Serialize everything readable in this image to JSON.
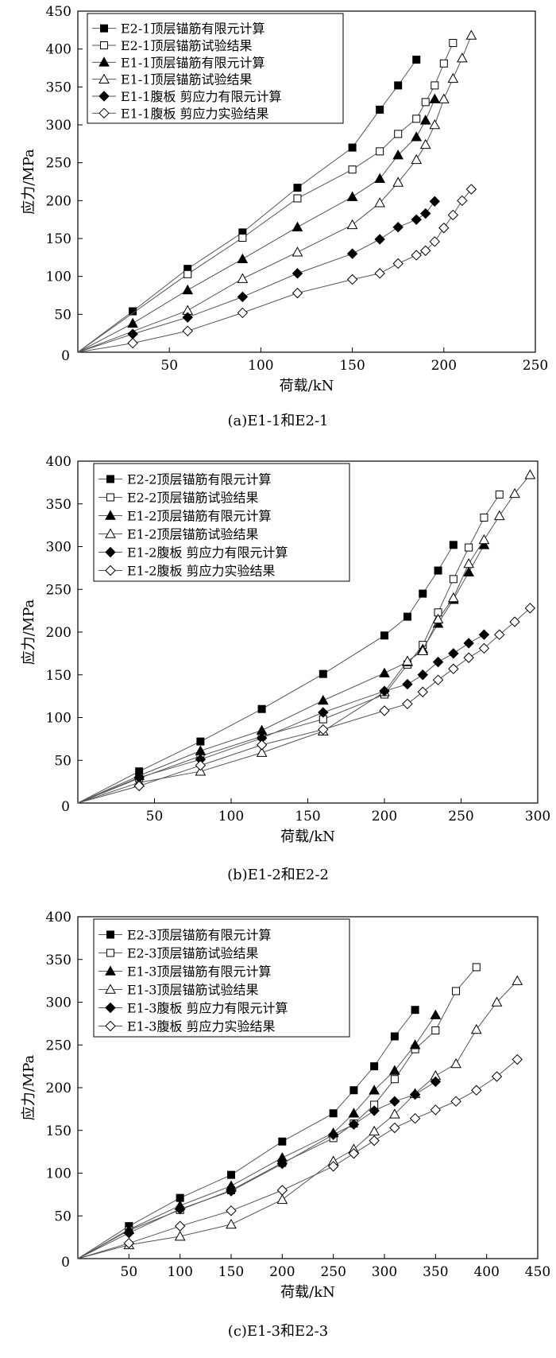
{
  "chart_data": [
    {
      "type": "line",
      "caption": "(a)E1-1和E2-1",
      "xlabel": "荷载/kN",
      "ylabel": "应力/MPa",
      "xlim": [
        0,
        250
      ],
      "ylim": [
        0,
        450
      ],
      "xticks": [
        "50",
        "100",
        "150",
        "200",
        "250"
      ],
      "yticks": [
        "50",
        "100",
        "150",
        "200",
        "250",
        "300",
        "350",
        "400",
        "450"
      ],
      "origin_label": "0",
      "legend_position": "top-left",
      "series": [
        {
          "name": "E2-1顶层锚筋有限元计算",
          "marker": "square-filled",
          "x": [
            0,
            30,
            60,
            90,
            120,
            150,
            165,
            175,
            185
          ],
          "y": [
            0,
            54,
            110,
            158,
            217,
            270,
            320,
            352,
            386
          ]
        },
        {
          "name": "E2-1顶层锚筋试验结果",
          "marker": "square-open",
          "x": [
            0,
            60,
            90,
            120,
            150,
            165,
            175,
            185,
            190,
            195,
            200,
            205
          ],
          "y": [
            0,
            103,
            151,
            203,
            241,
            265,
            288,
            308,
            330,
            352,
            381,
            408
          ]
        },
        {
          "name": "E1-1顶层锚筋有限元计算",
          "marker": "triangle-filled",
          "x": [
            0,
            30,
            60,
            90,
            120,
            150,
            165,
            175,
            185,
            190,
            195
          ],
          "y": [
            0,
            38,
            82,
            123,
            165,
            205,
            229,
            260,
            284,
            306,
            334
          ]
        },
        {
          "name": "E1-1顶层锚筋试验结果",
          "marker": "triangle-open",
          "x": [
            0,
            60,
            90,
            120,
            150,
            165,
            175,
            185,
            190,
            195,
            200,
            205,
            210,
            215
          ],
          "y": [
            0,
            55,
            97,
            132,
            168,
            197,
            224,
            254,
            274,
            300,
            334,
            361,
            388,
            418
          ]
        },
        {
          "name": "E1-1腹板  剪应力有限元计算",
          "marker": "diamond-filled",
          "x": [
            0,
            30,
            60,
            90,
            120,
            150,
            165,
            175,
            185,
            190,
            195
          ],
          "y": [
            0,
            24,
            46,
            73,
            104,
            130,
            149,
            165,
            175,
            183,
            199
          ]
        },
        {
          "name": "E1-1腹板  剪应力实验结果",
          "marker": "diamond-open",
          "x": [
            0,
            30,
            60,
            90,
            120,
            150,
            165,
            175,
            185,
            190,
            195,
            200,
            205,
            210,
            215
          ],
          "y": [
            0,
            12,
            28,
            52,
            78,
            96,
            104,
            117,
            128,
            134,
            146,
            164,
            181,
            200,
            215
          ]
        }
      ]
    },
    {
      "type": "line",
      "caption": "(b)E1-2和E2-2",
      "xlabel": "荷载/kN",
      "ylabel": "应力/MPa",
      "xlim": [
        0,
        300
      ],
      "ylim": [
        0,
        400
      ],
      "xticks": [
        "50",
        "100",
        "150",
        "200",
        "250",
        "300"
      ],
      "yticks": [
        "50",
        "100",
        "150",
        "200",
        "250",
        "300",
        "350",
        "400"
      ],
      "origin_label": "0",
      "legend_position": "top-left",
      "series": [
        {
          "name": "E2-2顶层锚筋有限元计算",
          "marker": "square-filled",
          "x": [
            0,
            40,
            80,
            120,
            160,
            200,
            215,
            225,
            235,
            245
          ],
          "y": [
            0,
            37,
            72,
            110,
            151,
            196,
            218,
            245,
            272,
            302
          ]
        },
        {
          "name": "E2-2顶层锚筋试验结果",
          "marker": "square-open",
          "x": [
            0,
            40,
            80,
            120,
            160,
            200,
            215,
            225,
            235,
            245,
            255,
            265,
            275
          ],
          "y": [
            0,
            29,
            55,
            78,
            98,
            127,
            162,
            185,
            223,
            262,
            299,
            334,
            361
          ]
        },
        {
          "name": "E1-2顶层锚筋有限元计算",
          "marker": "triangle-filled",
          "x": [
            0,
            40,
            80,
            120,
            160,
            200,
            215,
            225,
            235,
            245,
            255,
            265
          ],
          "y": [
            0,
            32,
            61,
            85,
            120,
            152,
            165,
            180,
            210,
            238,
            270,
            302
          ]
        },
        {
          "name": "E1-2顶层锚筋试验结果",
          "marker": "triangle-open",
          "x": [
            0,
            40,
            80,
            120,
            160,
            200,
            215,
            225,
            235,
            245,
            255,
            265,
            275,
            285,
            295
          ],
          "y": [
            0,
            24,
            37,
            59,
            84,
            130,
            166,
            178,
            215,
            240,
            280,
            308,
            336,
            362,
            384
          ]
        },
        {
          "name": "E1-2腹板  剪应力有限元计算",
          "marker": "diamond-filled",
          "x": [
            0,
            40,
            80,
            120,
            160,
            200,
            215,
            225,
            235,
            245,
            255,
            265
          ],
          "y": [
            0,
            30,
            51,
            76,
            106,
            131,
            139,
            150,
            165,
            175,
            187,
            197
          ]
        },
        {
          "name": "E1-2腹板  剪应力实验结果",
          "marker": "diamond-open",
          "x": [
            0,
            40,
            80,
            120,
            160,
            200,
            215,
            225,
            235,
            245,
            255,
            265,
            275,
            285,
            295
          ],
          "y": [
            0,
            20,
            44,
            68,
            86,
            108,
            116,
            130,
            144,
            157,
            170,
            181,
            197,
            212,
            228
          ]
        }
      ]
    },
    {
      "type": "line",
      "caption": "(c)E1-3和E2-3",
      "xlabel": "荷载/kN",
      "ylabel": "应力/MPa",
      "xlim": [
        0,
        450
      ],
      "ylim": [
        0,
        400
      ],
      "xticks": [
        "50",
        "100",
        "150",
        "200",
        "250",
        "300",
        "350",
        "400",
        "450"
      ],
      "yticks": [
        "50",
        "100",
        "150",
        "200",
        "250",
        "300",
        "350",
        "400"
      ],
      "origin_label": "0",
      "legend_position": "top-left",
      "series": [
        {
          "name": "E2-3顶层锚筋有限元计算",
          "marker": "square-filled",
          "x": [
            0,
            50,
            100,
            150,
            200,
            250,
            270,
            290,
            310,
            330
          ],
          "y": [
            0,
            38,
            71,
            98,
            137,
            170,
            197,
            225,
            260,
            291
          ]
        },
        {
          "name": "E2-3顶层锚筋试验结果",
          "marker": "square-open",
          "x": [
            0,
            50,
            100,
            150,
            200,
            250,
            270,
            290,
            310,
            330,
            350,
            370,
            390
          ],
          "y": [
            0,
            33,
            57,
            80,
            112,
            141,
            158,
            180,
            210,
            245,
            267,
            313,
            341
          ]
        },
        {
          "name": "E1-3顶层锚筋有限元计算",
          "marker": "triangle-filled",
          "x": [
            0,
            50,
            100,
            150,
            200,
            250,
            270,
            290,
            310,
            330,
            350
          ],
          "y": [
            0,
            34,
            62,
            85,
            118,
            147,
            170,
            197,
            220,
            250,
            285
          ]
        },
        {
          "name": "E1-3顶层锚筋试验结果",
          "marker": "triangle-open",
          "x": [
            0,
            50,
            100,
            150,
            200,
            250,
            270,
            290,
            310,
            330,
            350,
            370,
            390,
            410,
            430
          ],
          "y": [
            0,
            16,
            26,
            40,
            69,
            114,
            128,
            149,
            169,
            193,
            214,
            228,
            268,
            300,
            325
          ]
        },
        {
          "name": "E1-3腹板  剪应力有限元计算",
          "marker": "diamond-filled",
          "x": [
            0,
            50,
            100,
            150,
            200,
            250,
            270,
            290,
            310,
            330,
            350
          ],
          "y": [
            0,
            30,
            58,
            79,
            111,
            145,
            157,
            173,
            184,
            192,
            207
          ]
        },
        {
          "name": "E1-3腹板  剪应力实验结果",
          "marker": "diamond-open",
          "x": [
            0,
            50,
            100,
            150,
            200,
            250,
            270,
            290,
            310,
            330,
            350,
            370,
            390,
            410,
            430
          ],
          "y": [
            0,
            18,
            38,
            56,
            80,
            108,
            123,
            138,
            153,
            164,
            174,
            184,
            197,
            213,
            233
          ]
        }
      ]
    }
  ]
}
